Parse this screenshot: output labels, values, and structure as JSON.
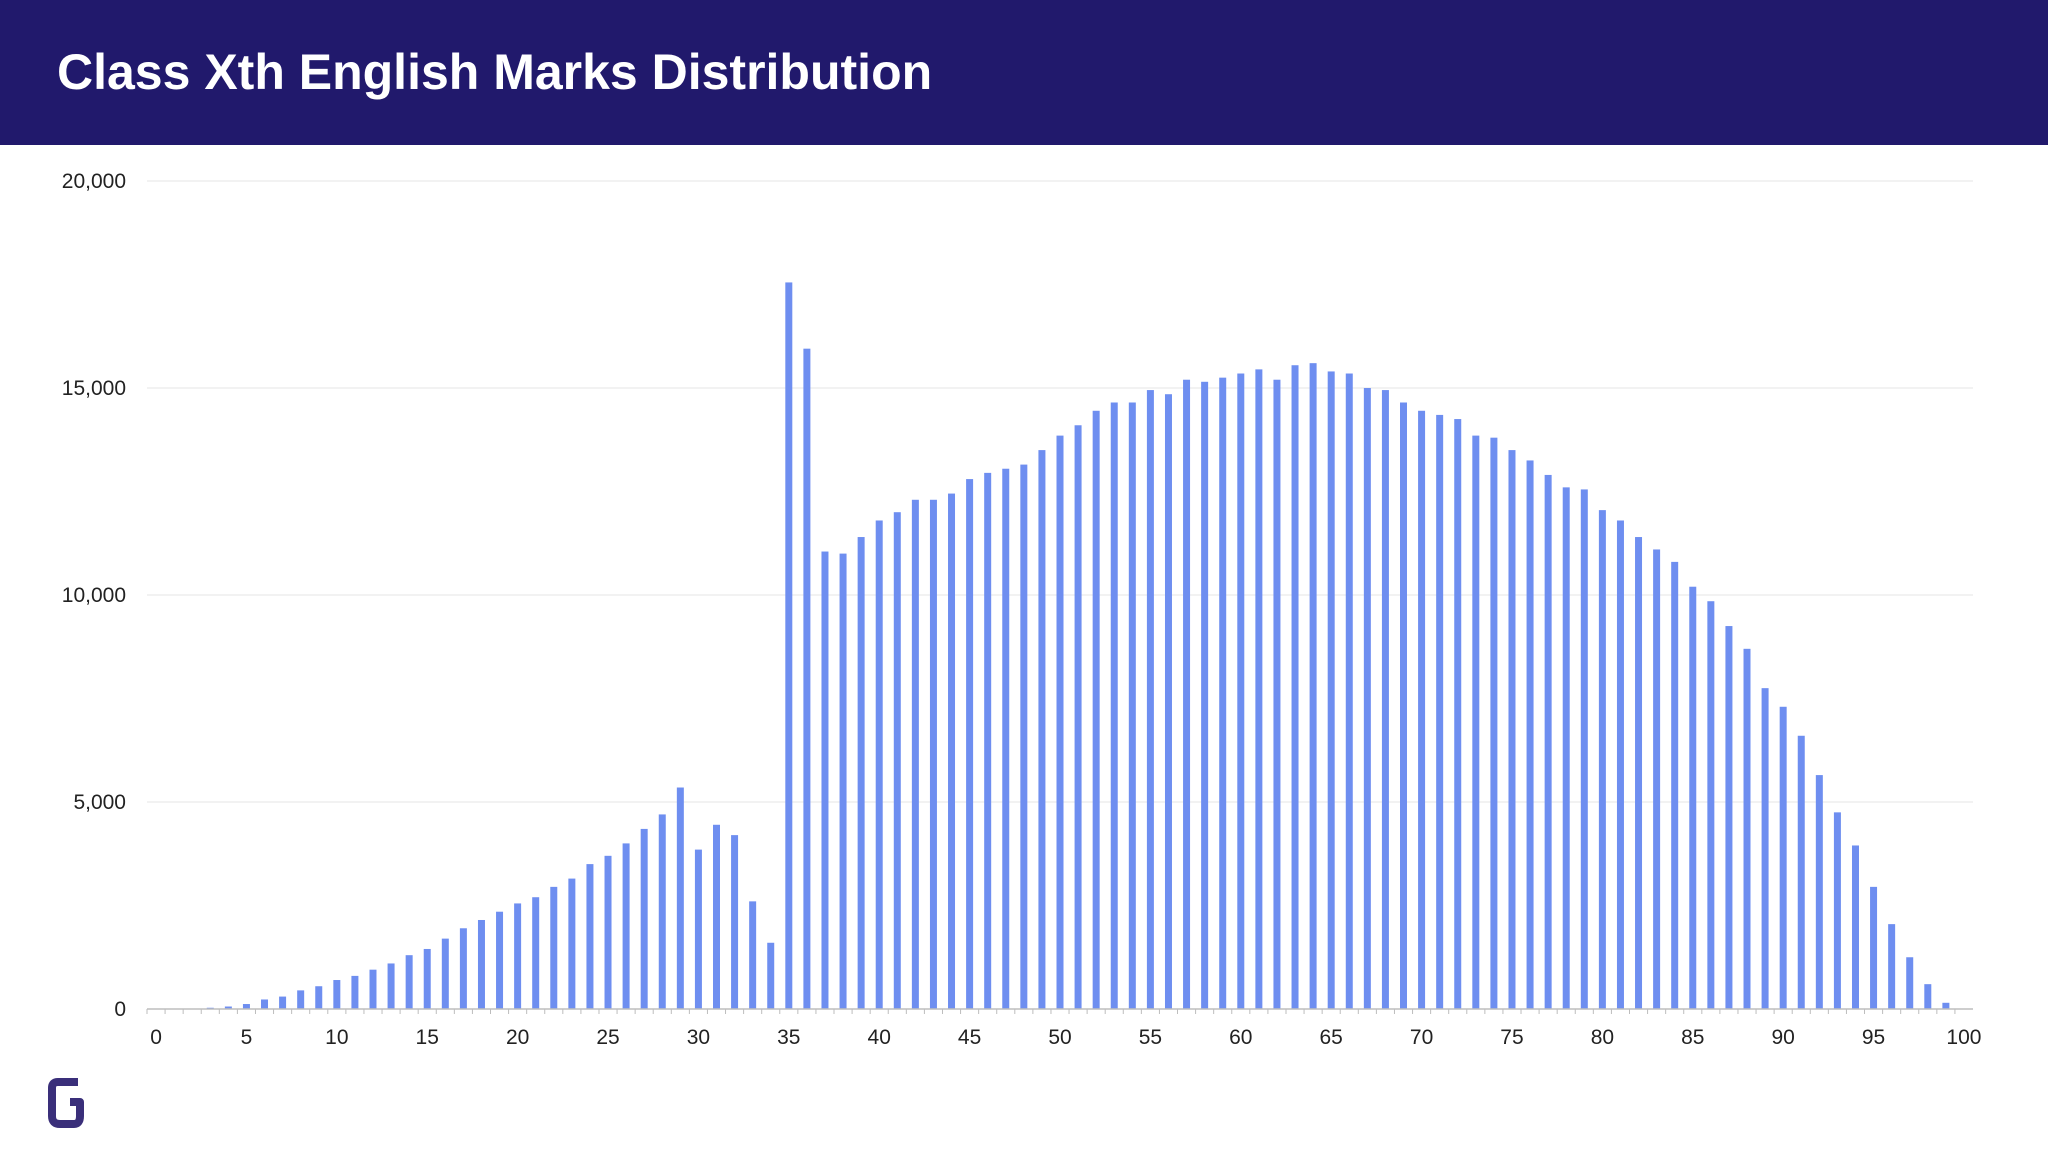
{
  "title": "Class Xth English Marks Distribution",
  "colors": {
    "header": "#21196c",
    "bar": "#6e8ef0",
    "logo": "#3a2f7a"
  },
  "logo_icon": "g-logo-icon",
  "chart_data": {
    "type": "bar",
    "title": "",
    "xlabel": "",
    "ylabel": "",
    "x_ticks": [
      0,
      5,
      10,
      15,
      20,
      25,
      30,
      35,
      40,
      45,
      50,
      55,
      60,
      65,
      70,
      75,
      80,
      85,
      90,
      95,
      100
    ],
    "y_ticks": [
      "0",
      "5,000",
      "10,000",
      "15,000",
      "20,000"
    ],
    "y_tick_values": [
      0,
      5000,
      10000,
      15000,
      20000
    ],
    "xlim": [
      0,
      100
    ],
    "ylim": [
      0,
      20000
    ],
    "grid": true,
    "legend": "none",
    "series": [
      {
        "x": [
          0,
          1,
          2,
          3,
          4,
          5,
          6,
          7,
          8,
          9,
          10,
          11,
          12,
          13,
          14,
          15,
          16,
          17,
          18,
          19,
          20,
          21,
          22,
          23,
          24,
          25,
          26,
          27,
          28,
          29,
          30,
          31,
          32,
          33,
          34,
          35,
          36,
          37,
          38,
          39,
          40,
          41,
          42,
          43,
          44,
          45,
          46,
          47,
          48,
          49,
          50,
          51,
          52,
          53,
          54,
          55,
          56,
          57,
          58,
          59,
          60,
          61,
          62,
          63,
          64,
          65,
          66,
          67,
          68,
          69,
          70,
          71,
          72,
          73,
          74,
          75,
          76,
          77,
          78,
          79,
          80,
          81,
          82,
          83,
          84,
          85,
          86,
          87,
          88,
          89,
          90,
          91,
          92,
          93,
          94,
          95,
          96,
          97,
          98,
          99,
          100
        ],
        "values": [
          0,
          0,
          0,
          30,
          60,
          120,
          230,
          300,
          450,
          550,
          700,
          800,
          950,
          1100,
          1300,
          1450,
          1700,
          1950,
          2150,
          2350,
          2550,
          2700,
          2950,
          3150,
          3500,
          3700,
          4000,
          4350,
          4700,
          5350,
          3850,
          4450,
          4200,
          2600,
          1600,
          17550,
          15950,
          11050,
          11000,
          11400,
          11800,
          12000,
          12300,
          12300,
          12450,
          12800,
          12950,
          13050,
          13150,
          13500,
          13850,
          14100,
          14450,
          14650,
          14650,
          14950,
          14850,
          15200,
          15150,
          15250,
          15350,
          15450,
          15200,
          15550,
          15600,
          15400,
          15350,
          15000,
          14950,
          14650,
          14450,
          14350,
          14250,
          13850,
          13800,
          13500,
          13250,
          12900,
          12600,
          12550,
          12050,
          11800,
          11400,
          11100,
          10800,
          10200,
          9850,
          9250,
          8700,
          7750,
          7300,
          6600,
          5650,
          4750,
          3950,
          2950,
          2050,
          1250,
          600,
          150,
          0
        ]
      }
    ]
  }
}
